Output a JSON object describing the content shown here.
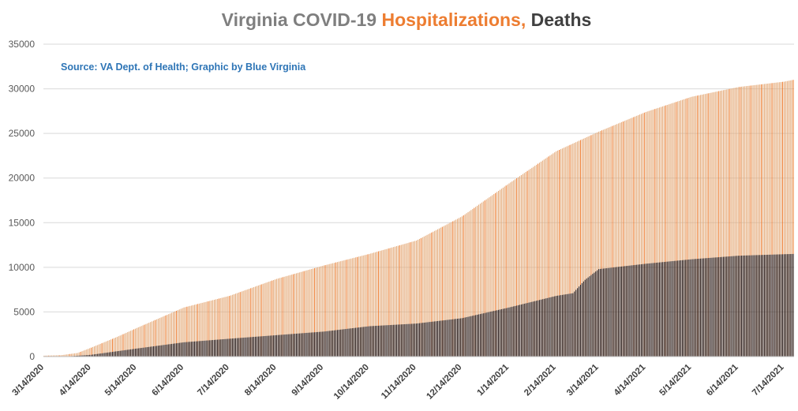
{
  "chart_data": {
    "type": "bar",
    "title_parts": [
      {
        "text": "Virginia COVID-19 ",
        "color": "#7f7f7f"
      },
      {
        "text": "Hospitalizations,",
        "color": "#ed7d31"
      },
      {
        "text": " Deaths",
        "color": "#404040"
      }
    ],
    "source": "Source: VA Dept. of Health; Graphic by Blue Virginia",
    "x_start": "3/14/2020",
    "x_end": "7/20/2021",
    "x_ticks": [
      "3/14/2020",
      "4/14/2020",
      "5/14/2020",
      "6/14/2020",
      "7/14/2020",
      "8/14/2020",
      "9/14/2020",
      "10/14/2020",
      "11/14/2020",
      "12/14/2020",
      "1/14/2021",
      "2/14/2021",
      "3/14/2021",
      "4/14/2021",
      "5/14/2021",
      "6/14/2021",
      "7/14/2021"
    ],
    "ylim": [
      0,
      35000
    ],
    "y_ticks": [
      0,
      5000,
      10000,
      15000,
      20000,
      25000,
      30000,
      35000
    ],
    "grid": true,
    "legend": "none",
    "series": [
      {
        "name": "Hospitalizations",
        "color": "#e3a774",
        "accent_color": "#ed7d31",
        "keypoints": [
          [
            "3/14/2020",
            100
          ],
          [
            "3/25/2020",
            150
          ],
          [
            "4/5/2020",
            400
          ],
          [
            "4/14/2020",
            1000
          ],
          [
            "5/1/2020",
            2200
          ],
          [
            "5/14/2020",
            3200
          ],
          [
            "6/14/2020",
            5500
          ],
          [
            "7/14/2020",
            6800
          ],
          [
            "8/14/2020",
            8700
          ],
          [
            "9/14/2020",
            10200
          ],
          [
            "10/14/2020",
            11500
          ],
          [
            "11/14/2020",
            13000
          ],
          [
            "12/14/2020",
            15700
          ],
          [
            "1/14/2021",
            19400
          ],
          [
            "2/14/2021",
            23000
          ],
          [
            "3/14/2021",
            25200
          ],
          [
            "4/14/2021",
            27400
          ],
          [
            "5/14/2021",
            29100
          ],
          [
            "6/14/2021",
            30200
          ],
          [
            "7/14/2021",
            30800
          ],
          [
            "7/20/2021",
            31000
          ]
        ]
      },
      {
        "name": "Deaths",
        "color": "#1a0d0d",
        "keypoints": [
          [
            "3/14/2020",
            0
          ],
          [
            "4/1/2020",
            50
          ],
          [
            "4/14/2020",
            200
          ],
          [
            "5/14/2020",
            900
          ],
          [
            "6/14/2020",
            1600
          ],
          [
            "7/14/2020",
            2000
          ],
          [
            "8/14/2020",
            2400
          ],
          [
            "9/14/2020",
            2800
          ],
          [
            "10/14/2020",
            3400
          ],
          [
            "11/14/2020",
            3700
          ],
          [
            "12/14/2020",
            4300
          ],
          [
            "1/14/2021",
            5500
          ],
          [
            "2/14/2021",
            6800
          ],
          [
            "2/25/2021",
            7100
          ],
          [
            "3/5/2021",
            8600
          ],
          [
            "3/14/2021",
            9800
          ],
          [
            "4/14/2021",
            10400
          ],
          [
            "5/14/2021",
            10900
          ],
          [
            "6/14/2021",
            11300
          ],
          [
            "7/20/2021",
            11500
          ]
        ]
      }
    ]
  }
}
